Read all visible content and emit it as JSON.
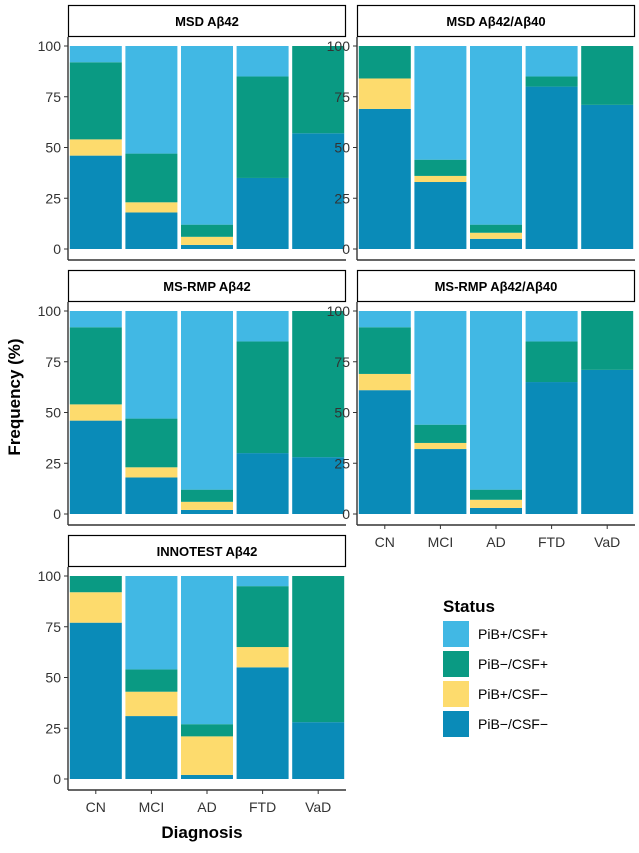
{
  "chart_data": {
    "type": "bar",
    "subtype": "stacked-100",
    "xlabel": "Diagnosis",
    "ylabel": "Frequency (%)",
    "ylim": [
      0,
      100
    ],
    "yticks": [
      0,
      25,
      50,
      75,
      100
    ],
    "categories": [
      "CN",
      "MCI",
      "AD",
      "FTD",
      "VaD"
    ],
    "legend": {
      "title": "Status",
      "placement": "right",
      "entries": [
        {
          "key": "pos_pos",
          "label": "PiB+/CSF+",
          "color": "#41B8E4"
        },
        {
          "key": "neg_pos",
          "label": "PiB−/CSF+",
          "color": "#0A9A83"
        },
        {
          "key": "pos_neg",
          "label": "PiB+/CSF−",
          "color": "#FDDB6D"
        },
        {
          "key": "neg_neg",
          "label": "PiB−/CSF−",
          "color": "#0A8BB8"
        }
      ]
    },
    "stack_order_bottom_to_top": [
      "neg_neg",
      "pos_neg",
      "neg_pos",
      "pos_pos"
    ],
    "panels": [
      {
        "title": "MSD Aβ42",
        "series": {
          "neg_neg": [
            46,
            18,
            2,
            35,
            57
          ],
          "pos_neg": [
            8,
            5,
            4,
            0,
            0
          ],
          "neg_pos": [
            38,
            24,
            6,
            50,
            43
          ],
          "pos_pos": [
            8,
            53,
            88,
            15,
            0
          ]
        }
      },
      {
        "title": "MSD Aβ42/Aβ40",
        "series": {
          "neg_neg": [
            69,
            33,
            5,
            80,
            71
          ],
          "pos_neg": [
            15,
            3,
            3,
            0,
            0
          ],
          "neg_pos": [
            16,
            8,
            4,
            5,
            29
          ],
          "pos_pos": [
            0,
            56,
            88,
            15,
            0
          ]
        }
      },
      {
        "title": "MS-RMP Aβ42",
        "series": {
          "neg_neg": [
            46,
            18,
            2,
            30,
            28
          ],
          "pos_neg": [
            8,
            5,
            4,
            0,
            0
          ],
          "neg_pos": [
            38,
            24,
            6,
            55,
            72
          ],
          "pos_pos": [
            8,
            53,
            88,
            15,
            0
          ]
        }
      },
      {
        "title": "MS-RMP Aβ42/Aβ40",
        "series": {
          "neg_neg": [
            61,
            32,
            3,
            65,
            71
          ],
          "pos_neg": [
            8,
            3,
            4,
            0,
            0
          ],
          "neg_pos": [
            23,
            9,
            5,
            20,
            29
          ],
          "pos_pos": [
            8,
            56,
            88,
            15,
            0
          ]
        }
      },
      {
        "title": "INNOTEST Aβ42",
        "series": {
          "neg_neg": [
            77,
            31,
            2,
            55,
            28
          ],
          "pos_neg": [
            15,
            12,
            19,
            10,
            0
          ],
          "neg_pos": [
            8,
            11,
            6,
            30,
            72
          ],
          "pos_pos": [
            0,
            46,
            73,
            5,
            0
          ]
        }
      }
    ]
  }
}
